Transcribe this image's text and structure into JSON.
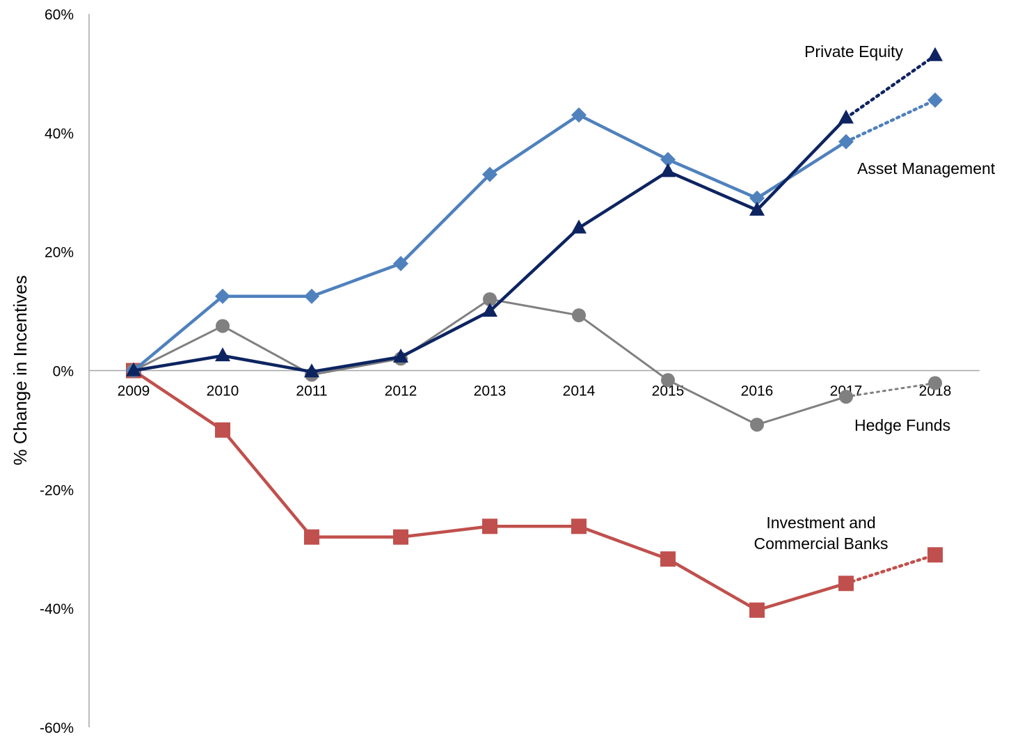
{
  "chart_data": {
    "type": "line",
    "ylabel": "% Change in Incentives",
    "xlabel": "",
    "title": "",
    "ylim": [
      -60,
      60
    ],
    "y_ticks": [
      "60%",
      "40%",
      "20%",
      "0%",
      "-20%",
      "-40%",
      "-60%"
    ],
    "y_tick_values": [
      60,
      40,
      20,
      0,
      -20,
      -40,
      -60
    ],
    "categories": [
      "2009",
      "2010",
      "2011",
      "2012",
      "2013",
      "2014",
      "2015",
      "2016",
      "2017",
      "2018"
    ],
    "projected_from_index": 8,
    "grid": false,
    "series": [
      {
        "name": "Asset Management",
        "label_lines": [
          "Asset Management"
        ],
        "color": "#4f81bd",
        "marker": "diamond",
        "values": [
          0,
          12.5,
          12.5,
          18,
          33,
          43,
          35.5,
          29,
          38.5,
          45.5
        ]
      },
      {
        "name": "Private Equity",
        "label_lines": [
          "Private Equity"
        ],
        "color": "#0d2461",
        "marker": "triangle",
        "values": [
          0,
          2.5,
          -0.2,
          2.3,
          10,
          24,
          33.5,
          27,
          42.5,
          53
        ]
      },
      {
        "name": "Hedge Funds",
        "label_lines": [
          "Hedge Funds"
        ],
        "color": "#808080",
        "marker": "circle",
        "values": [
          0,
          7.5,
          -0.7,
          2,
          12,
          9.3,
          -1.6,
          -9.1,
          -4.4,
          -2.1
        ]
      },
      {
        "name": "Investment and Commercial Banks",
        "label_lines": [
          "Investment and",
          "Commercial Banks"
        ],
        "color": "#c0504d",
        "marker": "square",
        "values": [
          0,
          -10,
          -28,
          -28,
          -26.2,
          -26.2,
          -31.7,
          -40.3,
          -35.8,
          -31
        ]
      }
    ]
  }
}
